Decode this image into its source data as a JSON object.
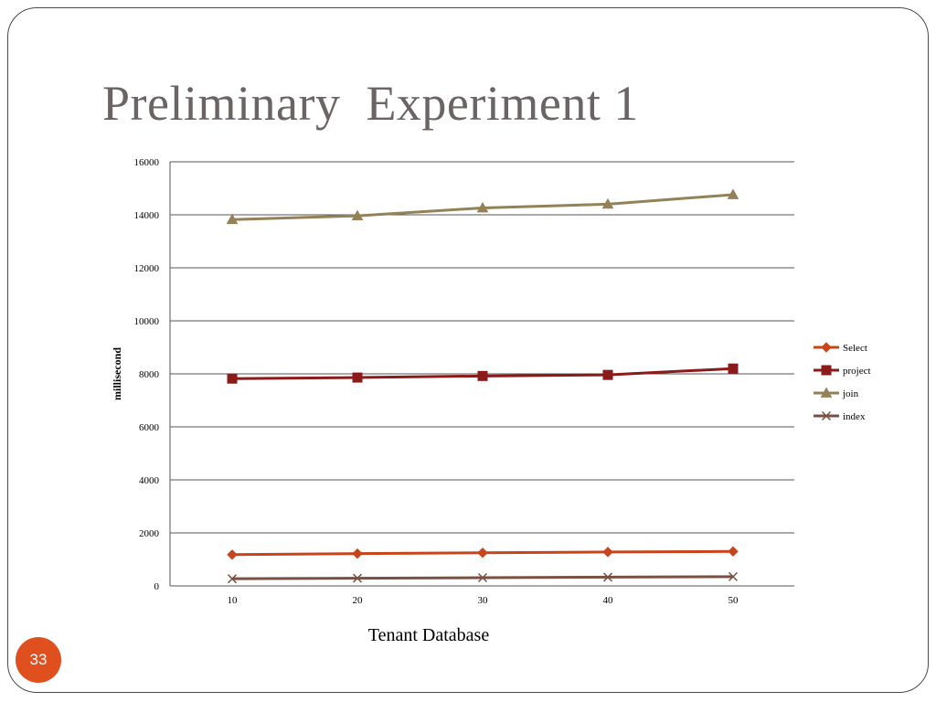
{
  "slide": {
    "title": "Preliminary  Experiment 1",
    "page_number": "33"
  },
  "colors": {
    "title": "#6b6464",
    "badge": "#e0501f",
    "gridline": "#555555",
    "Select": "#c8441a",
    "project": "#8b1a1a",
    "join": "#938258",
    "index": "#7a5042"
  },
  "chart_data": {
    "type": "line",
    "title": "",
    "xlabel": "Tenant Database",
    "ylabel": "millisecond",
    "x": [
      10,
      20,
      30,
      40,
      50
    ],
    "x_tick_labels": [
      "10",
      "20",
      "30",
      "40",
      "50"
    ],
    "ylim": [
      0,
      16000
    ],
    "y_ticks": [
      0,
      2000,
      4000,
      6000,
      8000,
      10000,
      12000,
      14000,
      16000
    ],
    "grid": true,
    "legend_position": "right",
    "series": [
      {
        "name": "Select",
        "marker": "diamond",
        "values": [
          1180,
          1220,
          1250,
          1280,
          1300
        ]
      },
      {
        "name": "project",
        "marker": "square",
        "values": [
          7820,
          7860,
          7920,
          7960,
          8200
        ]
      },
      {
        "name": "join",
        "marker": "triangle",
        "values": [
          13820,
          13960,
          14260,
          14400,
          14760
        ]
      },
      {
        "name": "index",
        "marker": "x",
        "values": [
          270,
          290,
          310,
          330,
          350
        ]
      }
    ]
  }
}
